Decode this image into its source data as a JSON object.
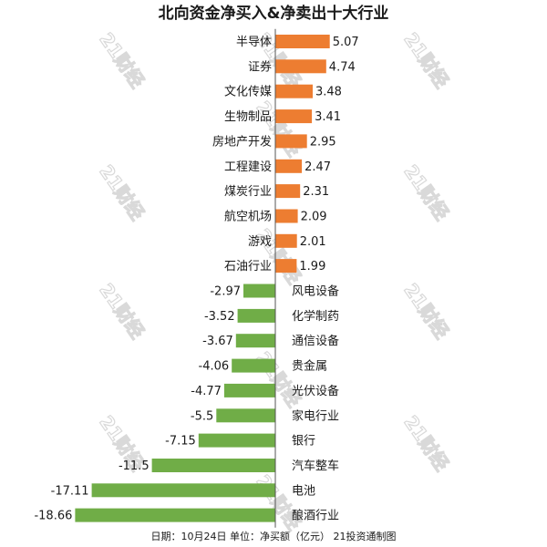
{
  "chart_data": {
    "type": "bar",
    "orientation": "horizontal",
    "title": "北向资金净买入&净卖出十大行业",
    "footer": "日期：10月24日 单位：净买额（亿元） 21投资通制图",
    "watermark": "21财经",
    "categories": [
      "半导体",
      "证券",
      "文化传媒",
      "生物制品",
      "房地产开发",
      "工程建设",
      "煤炭行业",
      "航空机场",
      "游戏",
      "石油行业",
      "风电设备",
      "化学制药",
      "通信设备",
      "贵金属",
      "光伏设备",
      "家电行业",
      "银行",
      "汽车整车",
      "电池",
      "酿酒行业"
    ],
    "values": [
      5.07,
      4.74,
      3.48,
      3.41,
      2.95,
      2.47,
      2.31,
      2.09,
      2.01,
      1.99,
      -2.97,
      -3.52,
      -3.67,
      -4.06,
      -4.77,
      -5.5,
      -7.15,
      -11.5,
      -17.11,
      -18.66
    ],
    "value_labels": [
      "5.07",
      "4.74",
      "3.48",
      "3.41",
      "2.95",
      "2.47",
      "2.31",
      "2.09",
      "2.01",
      "1.99",
      "-2.97",
      "-3.52",
      "-3.67",
      "-4.06",
      "-4.77",
      "-5.5",
      "-7.15",
      "-11.5",
      "-17.11",
      "-18.66"
    ],
    "colors": {
      "positive": "#ed7d31",
      "negative": "#70ad47",
      "axis": "#555555"
    },
    "grid": false,
    "legend": "none"
  }
}
